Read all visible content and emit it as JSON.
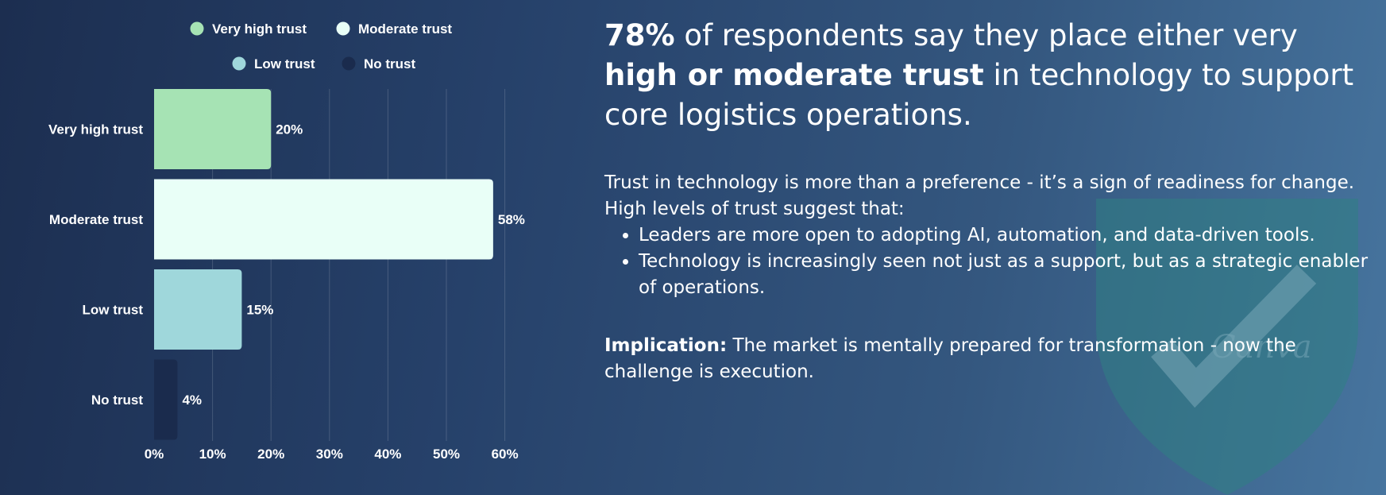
{
  "chart_data": {
    "type": "bar",
    "orientation": "horizontal",
    "categories": [
      "Very high trust",
      "Moderate trust",
      "Low trust",
      "No trust"
    ],
    "values": [
      20,
      58,
      15,
      4
    ],
    "value_labels": [
      "20%",
      "58%",
      "15%",
      "4%"
    ],
    "colors": [
      "#a6e3b4",
      "#e9fff7",
      "#9fd7db",
      "#1a2b4d"
    ],
    "xlim": [
      0,
      60
    ],
    "x_ticks": [
      "0%",
      "10%",
      "20%",
      "30%",
      "40%",
      "50%",
      "60%"
    ],
    "grid": "vertical",
    "legend": {
      "placement": "top",
      "items": [
        {
          "label": "Very high trust",
          "color": "#a6e3b4"
        },
        {
          "label": "Moderate trust",
          "color": "#e9fff7"
        },
        {
          "label": "Low trust",
          "color": "#9fd7db"
        },
        {
          "label": "No trust",
          "color": "#1a2b4d"
        }
      ]
    }
  },
  "headline": {
    "highlight1": "78%",
    "part1": " of respondents say they place either very ",
    "highlight2": "high or moderate trust",
    "part2": " in technology to support core logistics operations."
  },
  "body": {
    "intro": "Trust in technology is more than a preference - it’s a sign of readiness for change. High levels of trust suggest that:",
    "bullets": [
      "Leaders are more open to adopting AI, automation, and data-driven tools.",
      "Technology is increasingly seen not just as a support, but as a strategic enabler of operations."
    ]
  },
  "implication": {
    "label": "Implication:",
    "text": " The market is mentally prepared for transformation - now the challenge is execution."
  },
  "watermark": "Canva"
}
